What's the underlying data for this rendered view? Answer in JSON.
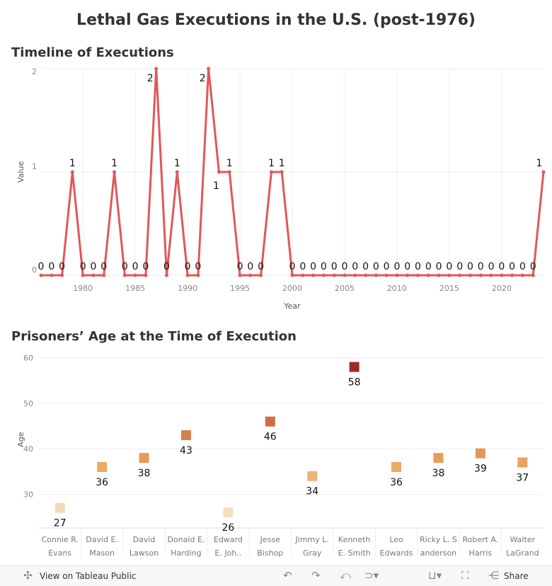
{
  "title": "Lethal Gas Executions in the U.S. (post-1976)",
  "chart_data": [
    {
      "type": "line",
      "title": "Timeline of Executions",
      "xlabel": "Year",
      "ylabel": "Value",
      "xlim": [
        1976,
        2024
      ],
      "ylim": [
        0,
        2
      ],
      "xticks": [
        1980,
        1985,
        1990,
        1995,
        2000,
        2005,
        2010,
        2015,
        2020
      ],
      "yticks": [
        0,
        1,
        2
      ],
      "grid": true,
      "color": "#e15759",
      "x": [
        1976,
        1977,
        1978,
        1979,
        1980,
        1981,
        1982,
        1983,
        1984,
        1985,
        1986,
        1987,
        1988,
        1989,
        1990,
        1991,
        1992,
        1993,
        1994,
        1995,
        1996,
        1997,
        1998,
        1999,
        2000,
        2001,
        2002,
        2003,
        2004,
        2005,
        2006,
        2007,
        2008,
        2009,
        2010,
        2011,
        2012,
        2013,
        2014,
        2015,
        2016,
        2017,
        2018,
        2019,
        2020,
        2021,
        2022,
        2023,
        2024
      ],
      "y": [
        0,
        0,
        0,
        1,
        0,
        0,
        0,
        1,
        0,
        0,
        0,
        2,
        0,
        1,
        0,
        0,
        2,
        1,
        1,
        0,
        0,
        0,
        1,
        1,
        0,
        0,
        0,
        0,
        0,
        0,
        0,
        0,
        0,
        0,
        0,
        0,
        0,
        0,
        0,
        0,
        0,
        0,
        0,
        0,
        0,
        0,
        0,
        0,
        1
      ]
    },
    {
      "type": "scatter",
      "title": "Prisoners’ Age at the Time of Execution",
      "xlabel": "",
      "ylabel": "Age",
      "yticks": [
        30,
        40,
        50,
        60
      ],
      "categories": [
        [
          "Connie R.",
          "Evans"
        ],
        [
          "David E.",
          "Mason"
        ],
        [
          "David",
          "Lawson"
        ],
        [
          "Donald E.",
          "Harding"
        ],
        [
          "Edward",
          "E. Joh.."
        ],
        [
          "Jesse",
          "Bishop"
        ],
        [
          "Jimmy L.",
          "Gray"
        ],
        [
          "Kenneth",
          "E. Smith"
        ],
        [
          "Leo",
          "Edwards"
        ],
        [
          "Ricky L. S",
          "anderson"
        ],
        [
          "Robert A.",
          "Harris"
        ],
        [
          "Walter",
          "LaGrand"
        ]
      ],
      "values": [
        27,
        36,
        38,
        43,
        26,
        46,
        34,
        58,
        36,
        38,
        39,
        37
      ],
      "color_scale": [
        "#f3e0c0",
        "#e9a55e",
        "#c8683e",
        "#9e2a25"
      ]
    }
  ],
  "footer": {
    "view_label": "View on Tableau Public",
    "share_label": "Share",
    "icons": [
      "tableau-icon",
      "undo-icon",
      "redo-icon",
      "revert-icon",
      "refresh-icon",
      "download-icon",
      "fullscreen-icon",
      "share-icon"
    ]
  }
}
